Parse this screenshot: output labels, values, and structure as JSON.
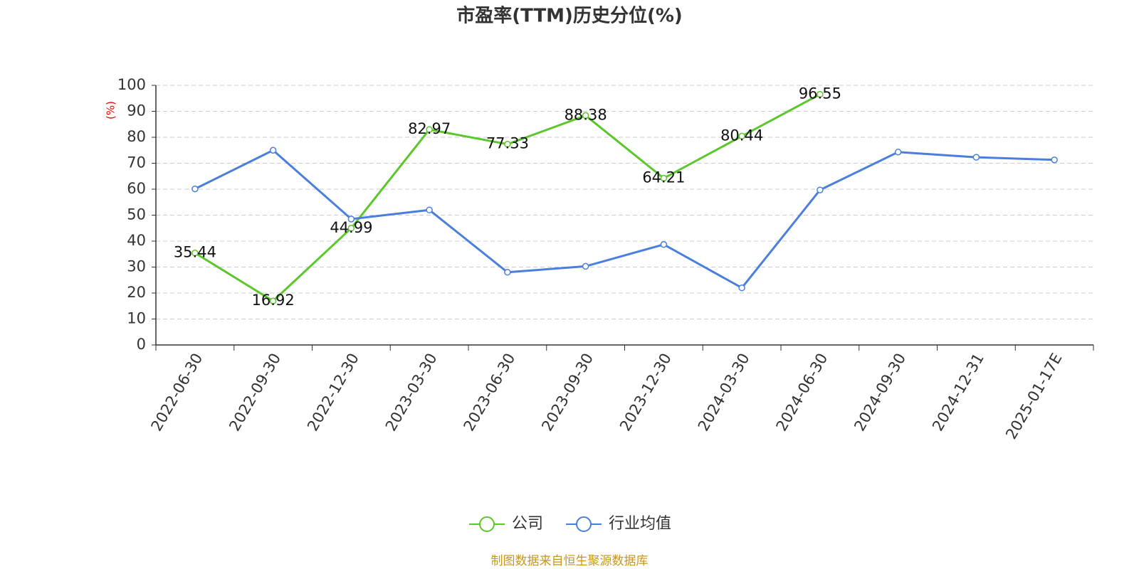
{
  "chart_data": {
    "type": "line",
    "title": "市盈率(TTM)历史分位(%)",
    "y_label": "(%)",
    "source": "制图数据来自恒生聚源数据库",
    "categories": [
      "2022-06-30",
      "2022-09-30",
      "2022-12-30",
      "2023-03-30",
      "2023-06-30",
      "2023-09-30",
      "2023-12-30",
      "2024-03-30",
      "2024-06-30",
      "2024-09-30",
      "2024-12-31",
      "2025-01-17E"
    ],
    "series": [
      {
        "name": "公司",
        "color": "#5bc72b",
        "values": [
          35.44,
          16.92,
          44.99,
          82.97,
          77.33,
          88.38,
          64.21,
          80.44,
          96.55,
          null,
          null,
          null
        ]
      },
      {
        "name": "行业均值",
        "color": "#4b7fde",
        "values": [
          60.1,
          75,
          48.5,
          52,
          28,
          30.3,
          38.7,
          22,
          59.7,
          74.3,
          72.3,
          71.3
        ]
      }
    ],
    "ylim": [
      0,
      100
    ],
    "yticks": [
      0,
      10,
      20,
      30,
      40,
      50,
      60,
      70,
      80,
      90,
      100
    ],
    "grid": true,
    "legend": "bottom"
  }
}
